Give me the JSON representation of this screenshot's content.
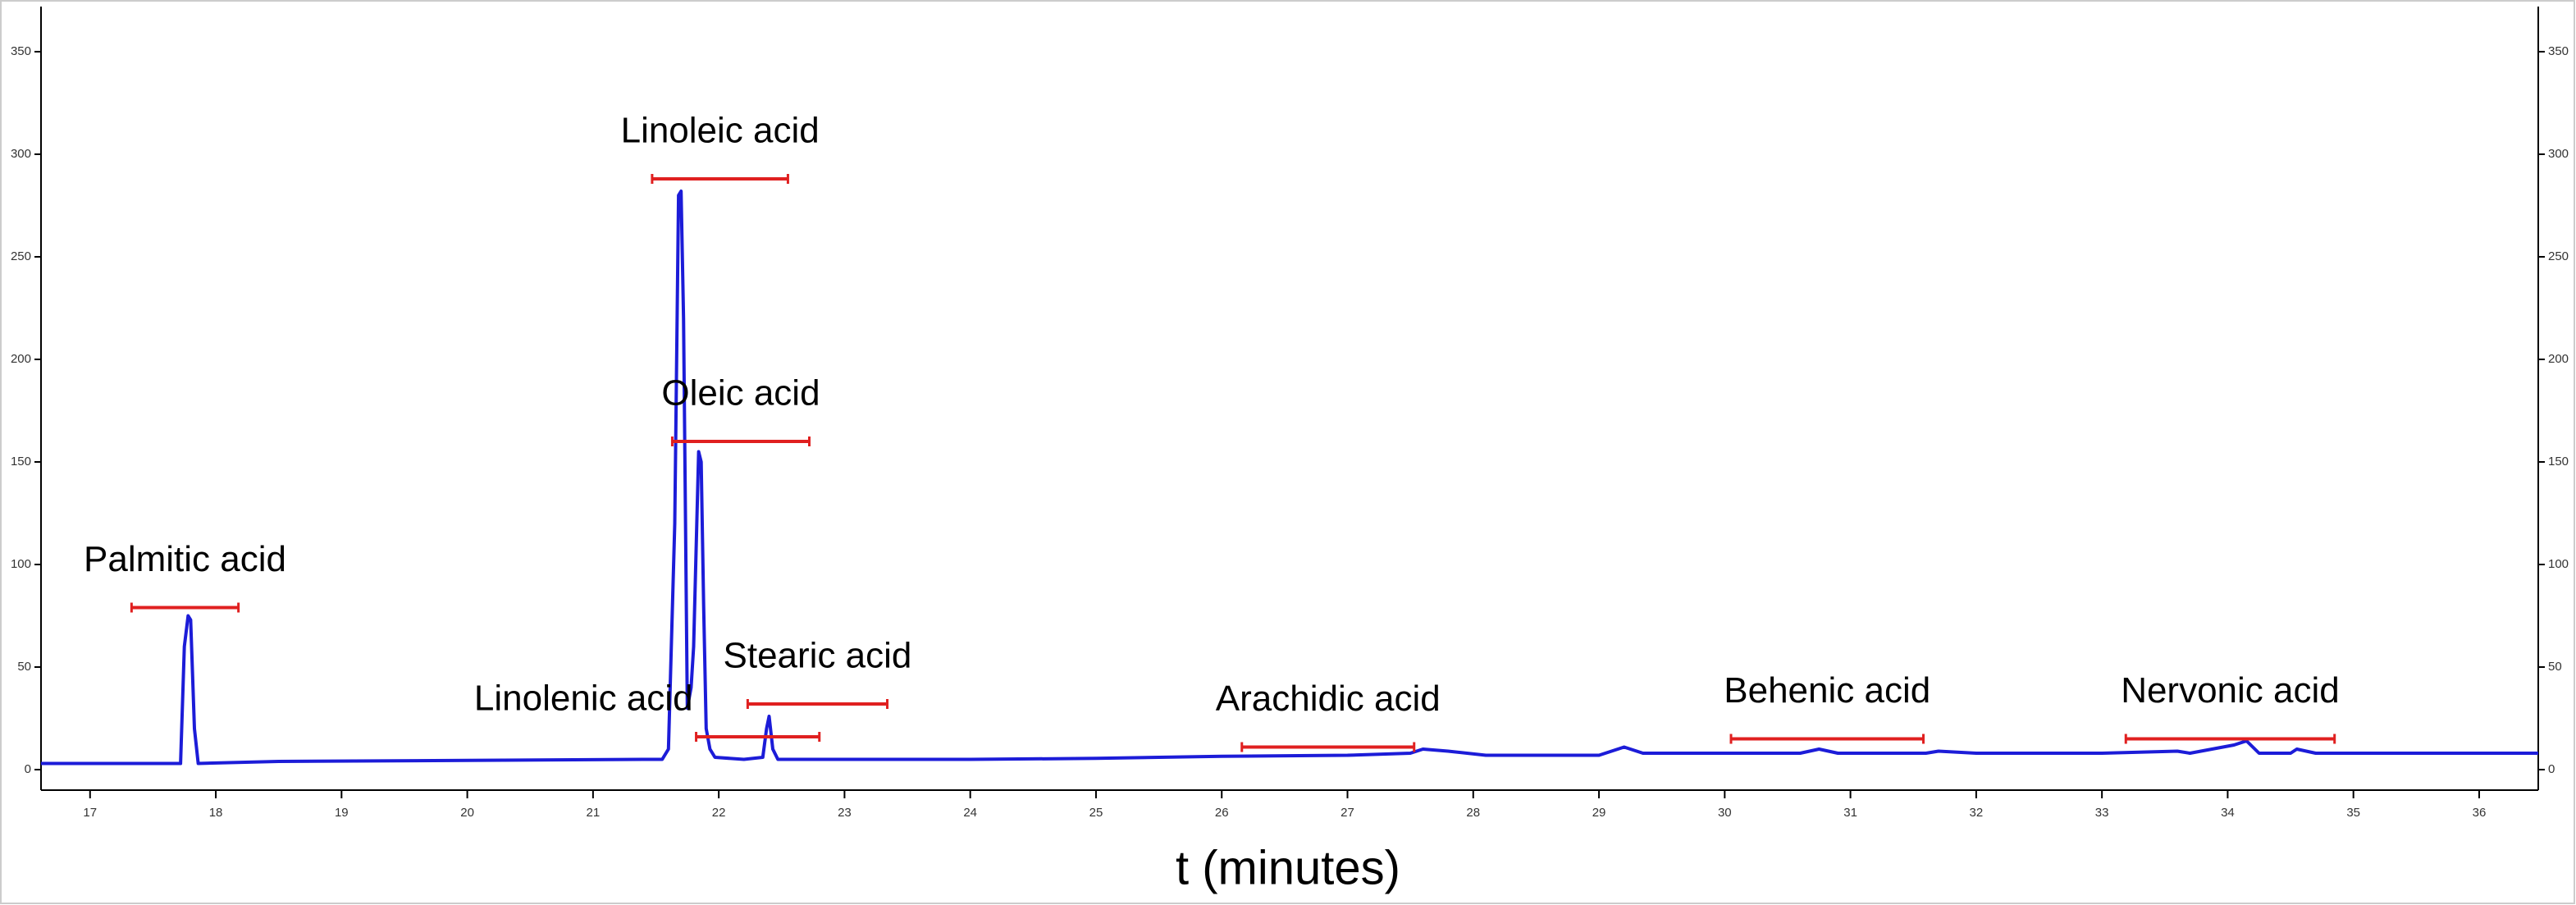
{
  "chart_data": {
    "type": "line",
    "x_label": "t (minutes)",
    "xlim": [
      16.61,
      36.47
    ],
    "xticks": [
      17,
      18,
      19,
      20,
      21,
      22,
      23,
      24,
      25,
      26,
      27,
      28,
      29,
      30,
      31,
      32,
      33,
      34,
      35,
      36
    ],
    "ylim": [
      -10,
      372
    ],
    "yticks": [
      0,
      50,
      100,
      150,
      200,
      250,
      300,
      350
    ],
    "y2ticks": [
      0,
      50,
      100,
      150,
      200,
      250,
      300,
      350
    ],
    "series": [
      {
        "color": "#1c1cd8",
        "x": [
          16.61,
          17.5,
          17.7,
          17.72,
          17.75,
          17.78,
          17.8,
          17.83,
          17.86,
          18.5,
          20,
          21.4,
          21.55,
          21.6,
          21.65,
          21.68,
          21.7,
          21.72,
          21.75,
          21.78,
          21.8,
          21.84,
          21.86,
          21.88,
          21.9,
          21.93,
          21.97,
          22.2,
          22.35,
          22.38,
          22.4,
          22.43,
          22.47,
          24,
          25,
          26,
          27,
          27.5,
          27.6,
          27.8,
          28.1,
          29,
          29.1,
          29.2,
          29.35,
          30,
          30.6,
          30.75,
          30.9,
          31.6,
          31.7,
          32,
          33,
          33.6,
          33.7,
          34.05,
          34.15,
          34.25,
          34.5,
          34.55,
          34.7,
          35.5,
          36.47
        ],
        "values": [
          3,
          3,
          3,
          3,
          60,
          75,
          73,
          20,
          3,
          4,
          4.5,
          5,
          5,
          10,
          120,
          280,
          282,
          220,
          30,
          40,
          60,
          155,
          150,
          80,
          20,
          10,
          6,
          5,
          6,
          20,
          26,
          10,
          5,
          5,
          5.5,
          6.5,
          7,
          8,
          10,
          9,
          7,
          7,
          9,
          11,
          8,
          8,
          8,
          10,
          8,
          8,
          9,
          8,
          8,
          9,
          8,
          12,
          14,
          8,
          8,
          10,
          8,
          8,
          8
        ]
      }
    ],
    "bracket_color": "#e02020",
    "annotations": [
      {
        "text": "Palmitic acid",
        "x": [
          17.33,
          18.18
        ],
        "y": 79
      },
      {
        "text": "Linoleic acid",
        "x": [
          21.47,
          22.55
        ],
        "y": 288
      },
      {
        "text": "Oleic acid",
        "x": [
          21.63,
          22.72
        ],
        "y": 160
      },
      {
        "text": "Linolenic acid",
        "x": [
          21.82,
          22.8
        ],
        "y": 16,
        "label_side": "left"
      },
      {
        "text": "Stearic acid",
        "x": [
          22.23,
          23.34
        ],
        "y": 32
      },
      {
        "text": "Arachidic acid",
        "x": [
          26.16,
          27.53
        ],
        "y": 11
      },
      {
        "text": "Behenic acid",
        "x": [
          30.05,
          31.58
        ],
        "y": 15
      },
      {
        "text": "Nervonic acid",
        "x": [
          33.19,
          34.85
        ],
        "y": 15
      }
    ]
  }
}
